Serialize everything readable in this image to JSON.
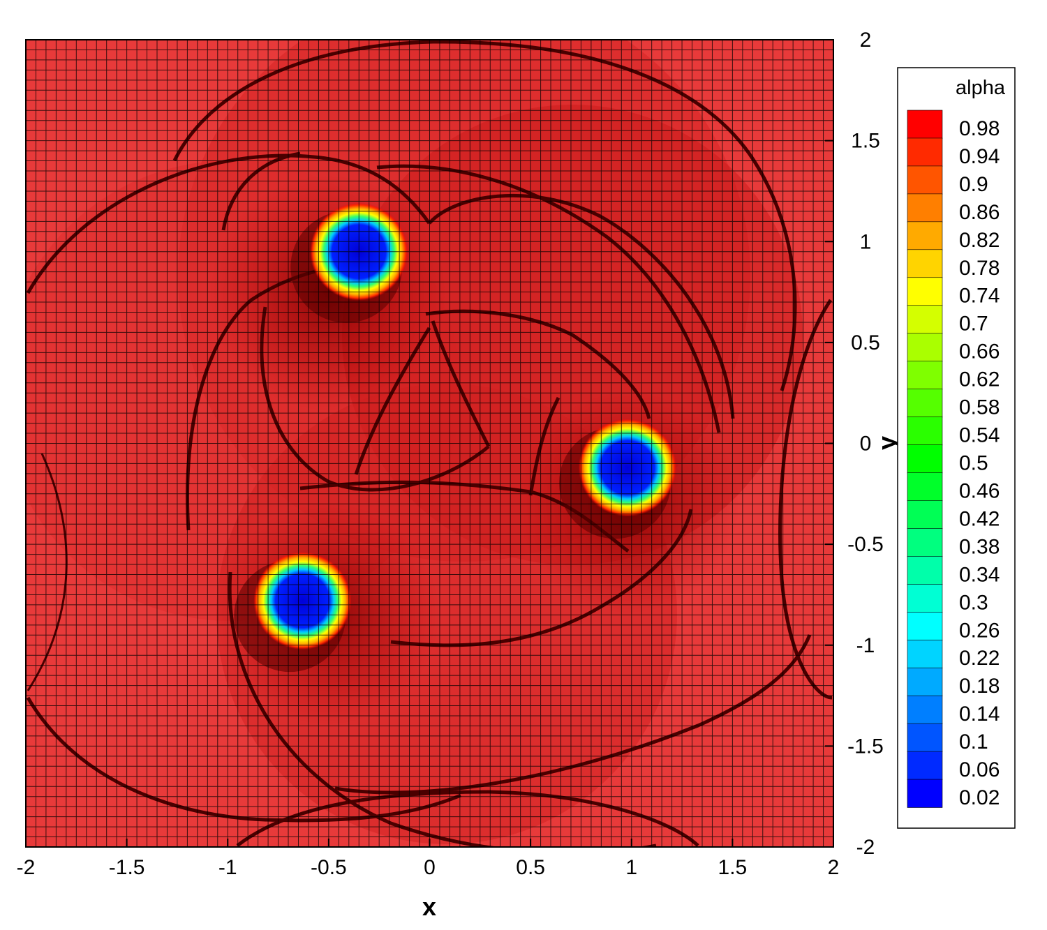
{
  "chart_data": {
    "type": "heatmap",
    "title": "",
    "xlabel": "x",
    "ylabel": "y",
    "xlim": [
      -2,
      2
    ],
    "ylim": [
      -2,
      2
    ],
    "x_ticks": [
      "-2",
      "-1.5",
      "-1",
      "-0.5",
      "0",
      "0.5",
      "1",
      "1.5",
      "2"
    ],
    "y_ticks": [
      "-2",
      "-1.5",
      "-1",
      "-0.5",
      "0",
      "0.5",
      "1",
      "1.5",
      "2"
    ],
    "grid": true,
    "mesh_cells": [
      80,
      80
    ],
    "background_value": 0.98,
    "bubbles": [
      {
        "x": -0.35,
        "y": 0.95,
        "min_value": 0.02
      },
      {
        "x": 0.98,
        "y": -0.12,
        "min_value": 0.02
      },
      {
        "x": -0.63,
        "y": -0.78,
        "min_value": 0.02
      }
    ],
    "legend": {
      "title": "alpha",
      "position": "right",
      "levels": [
        "0.98",
        "0.94",
        "0.9",
        "0.86",
        "0.82",
        "0.78",
        "0.74",
        "0.7",
        "0.66",
        "0.62",
        "0.58",
        "0.54",
        "0.5",
        "0.46",
        "0.42",
        "0.38",
        "0.34",
        "0.3",
        "0.26",
        "0.22",
        "0.18",
        "0.14",
        "0.1",
        "0.06",
        "0.02"
      ],
      "colors": [
        "#ff0000",
        "#ff2a00",
        "#ff5500",
        "#ff7f00",
        "#ffaa00",
        "#ffd400",
        "#ffff00",
        "#d4ff00",
        "#aaff00",
        "#7fff00",
        "#55ff00",
        "#2aff00",
        "#00ff00",
        "#00ff2a",
        "#00ff55",
        "#00ff7f",
        "#00ffaa",
        "#00ffd4",
        "#00ffff",
        "#00d4ff",
        "#00aaff",
        "#007fff",
        "#0055ff",
        "#002aff",
        "#0000ff"
      ]
    }
  }
}
